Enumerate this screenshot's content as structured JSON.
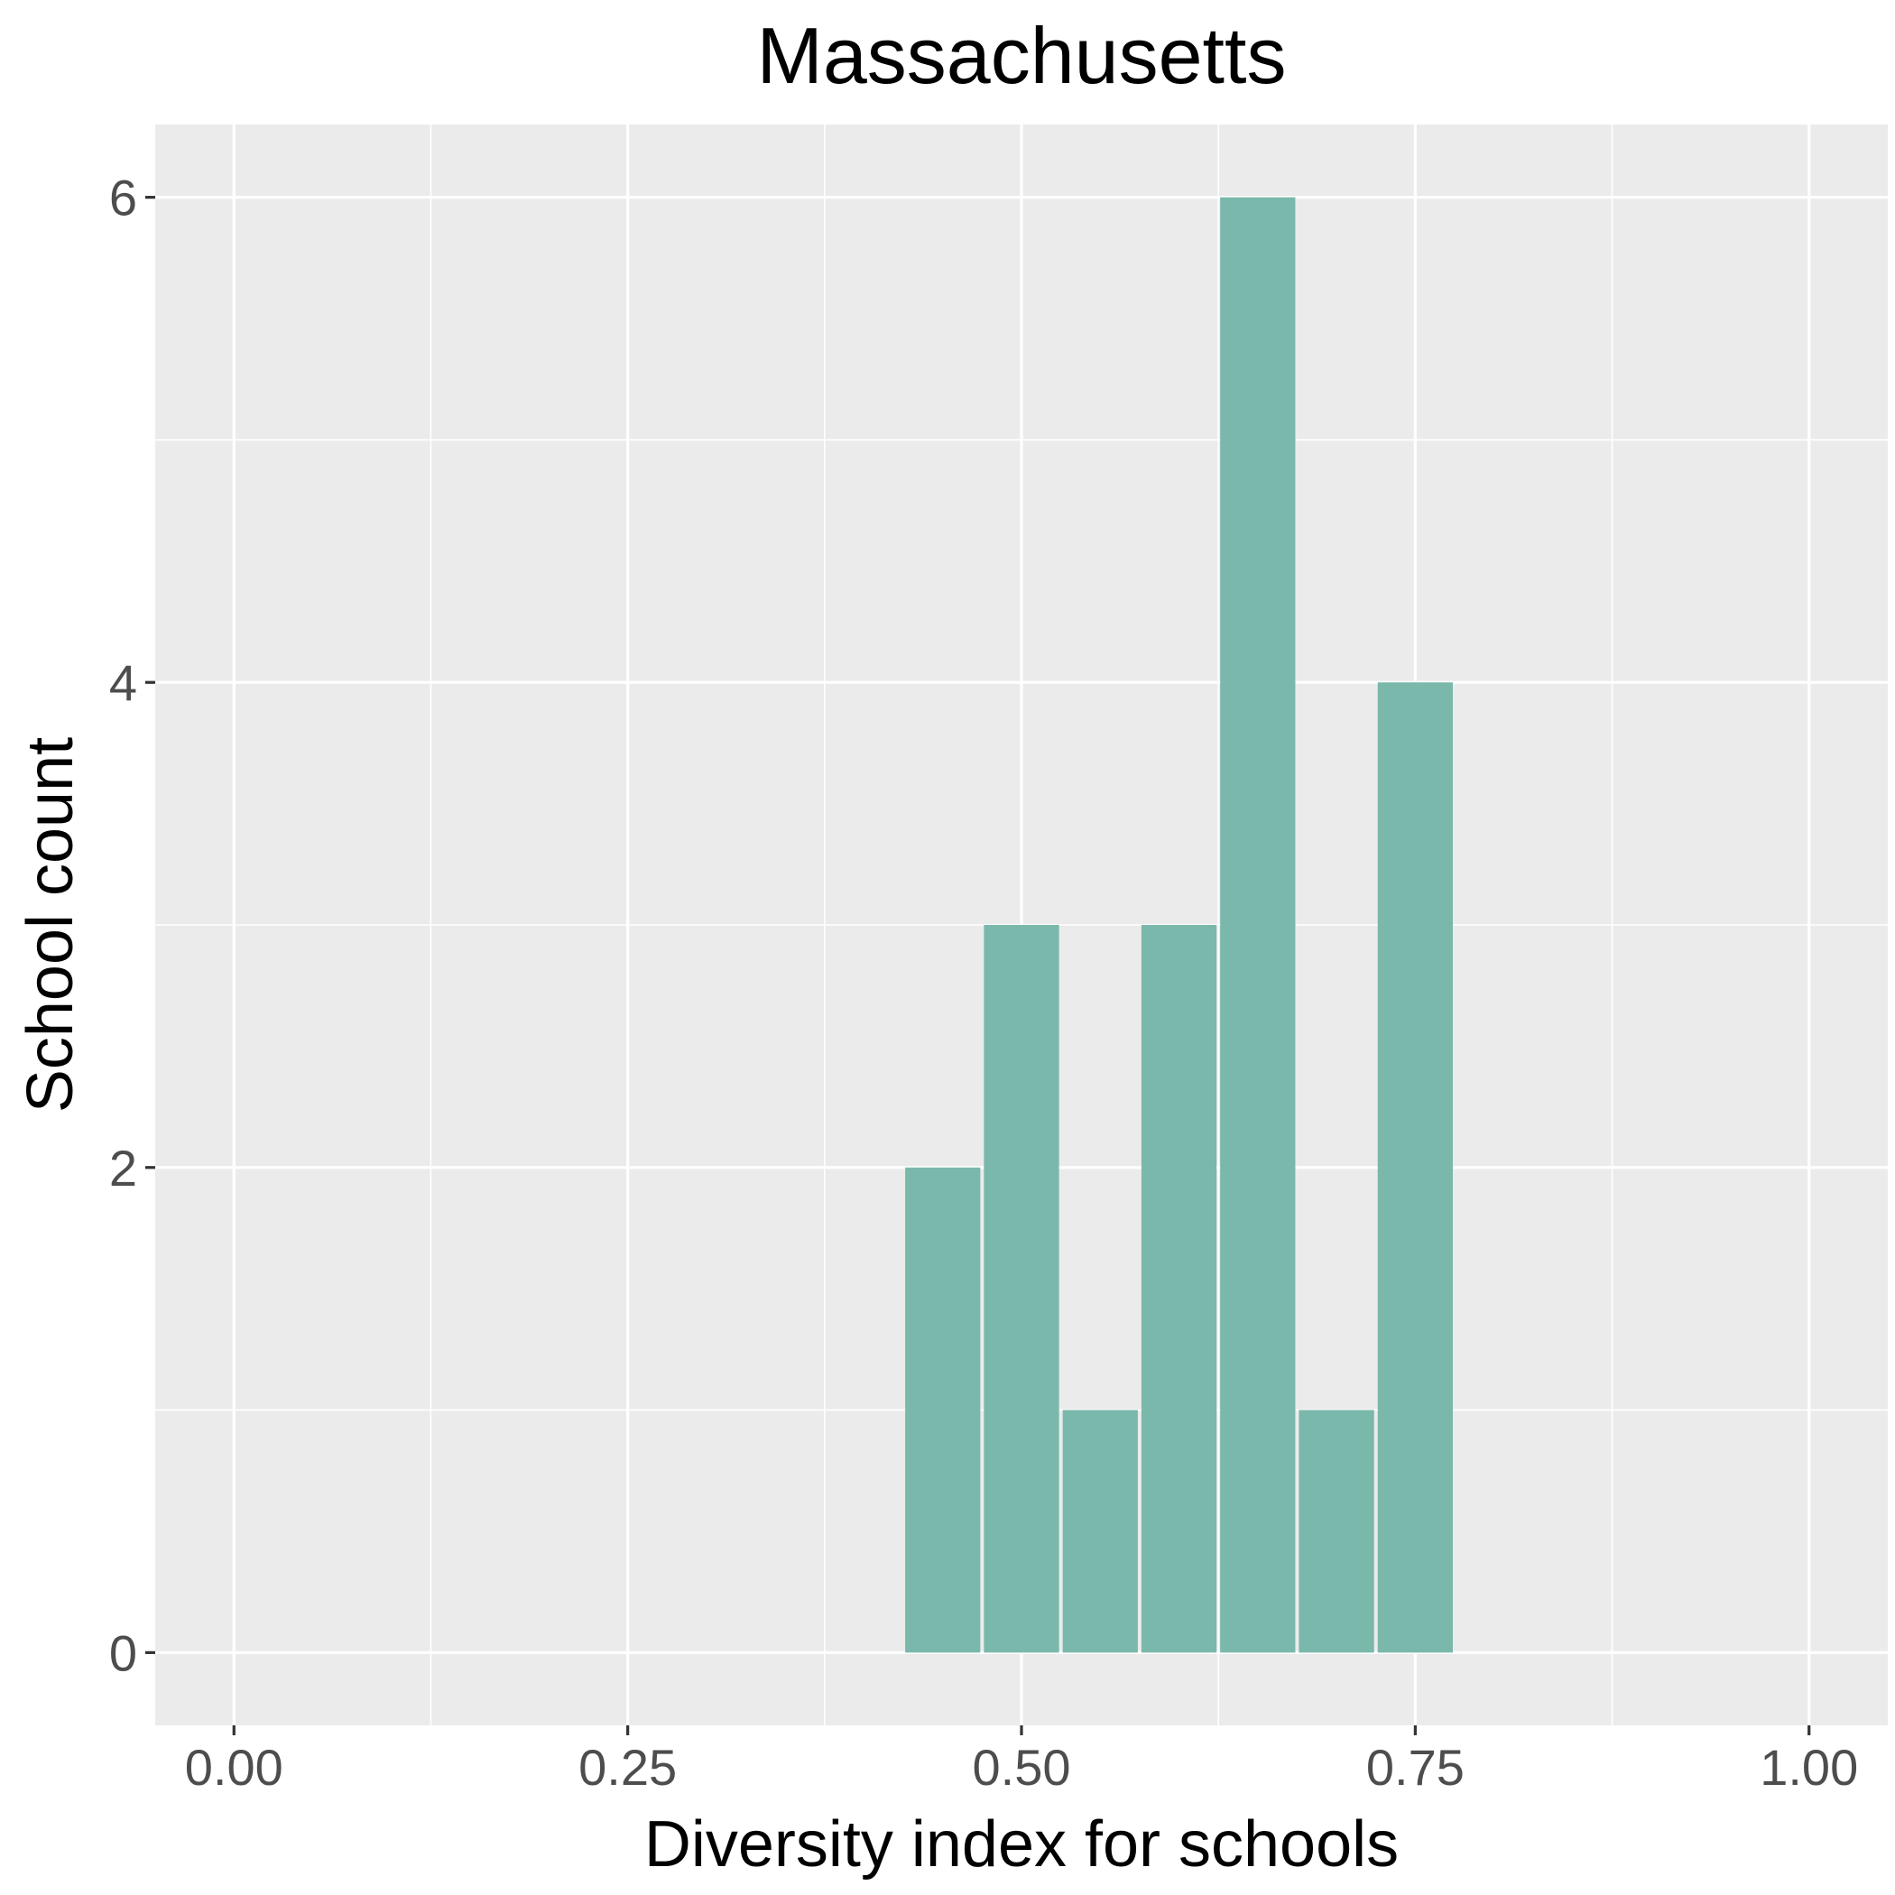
{
  "chart_data": {
    "type": "bar",
    "title": "Massachusetts",
    "xlabel": "Diversity index for schools",
    "ylabel": "School count",
    "xlim": [
      -0.05,
      1.05
    ],
    "ylim": [
      -0.3,
      6.3
    ],
    "x_ticks": [
      {
        "value": 0,
        "label": "0.00"
      },
      {
        "value": 0.25,
        "label": "0.25"
      },
      {
        "value": 0.5,
        "label": "0.50"
      },
      {
        "value": 0.75,
        "label": "0.75"
      },
      {
        "value": 1,
        "label": "1.00"
      }
    ],
    "y_ticks": [
      {
        "value": 0,
        "label": "0"
      },
      {
        "value": 2,
        "label": "2"
      },
      {
        "value": 4,
        "label": "4"
      },
      {
        "value": 6,
        "label": "6"
      }
    ],
    "bin_width": 0.05,
    "bins": [
      {
        "start": 0.425,
        "end": 0.475,
        "count": 2
      },
      {
        "start": 0.475,
        "end": 0.525,
        "count": 3
      },
      {
        "start": 0.525,
        "end": 0.575,
        "count": 1
      },
      {
        "start": 0.575,
        "end": 0.625,
        "count": 3
      },
      {
        "start": 0.625,
        "end": 0.675,
        "count": 6
      },
      {
        "start": 0.675,
        "end": 0.725,
        "count": 1
      },
      {
        "start": 0.725,
        "end": 0.775,
        "count": 4
      }
    ],
    "bar_color": "#7ab8ab",
    "panel_background": "#ebebeb",
    "grid": true,
    "grid_color": "#ffffff",
    "legend": "none"
  }
}
